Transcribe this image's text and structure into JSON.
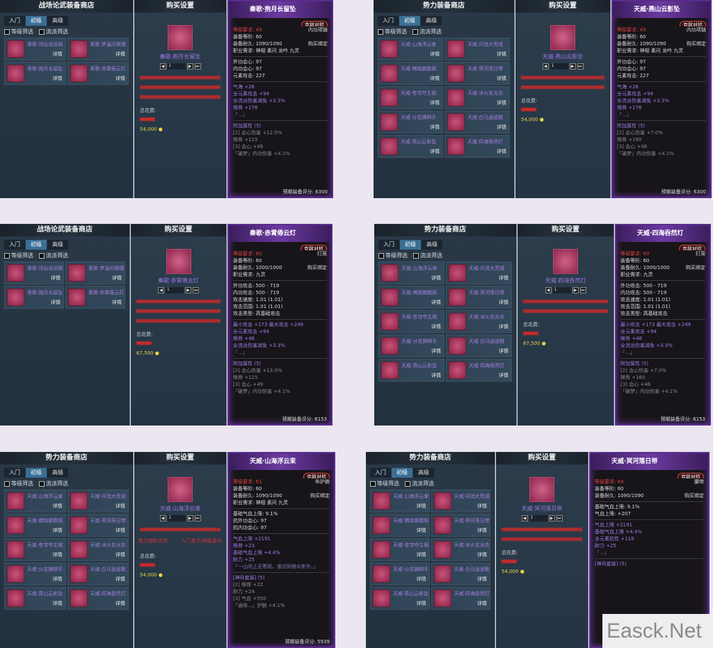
{
  "common": {
    "close": "✕",
    "tab_labels": [
      "入门",
      "初级",
      "高级"
    ],
    "filters": [
      "等级筛选",
      "流派筛选"
    ],
    "detail": "详情",
    "buy_title": "购买设置",
    "qty": "1",
    "total_label": "总花费:",
    "badge": "克敌对抗",
    "bind": "购买绑定",
    "qty_buttons": [
      "◀",
      "▶",
      "⏭"
    ]
  },
  "colors": {
    "accent_purple": "#6b3aa0",
    "tab_active": "#3a6f95",
    "name_purple": "#a77ee0",
    "warning_red": "#c72a2a",
    "coin_gold": "#e8d34a"
  },
  "panels": [
    {
      "shop_title": "战场论武装备商店",
      "items": [
        "秦歌·鸿出龙凤佩",
        "秦歌·梦溪问渠镯",
        "秦歌·抱月长留坠",
        "秦歌·赤霄倦云灯"
      ],
      "buy_name": "秦歌·抱月长留坠",
      "reqs": [],
      "red_bars": 3,
      "coins": "54,000",
      "tip": {
        "title": "秦歌·抱月长留坠",
        "type": "内功项链",
        "lines": [
          [
            "rq",
            "等级要求: 49"
          ],
          [
            "",
            "装备等阶: 60"
          ],
          [
            "",
            "装备耐久: 1090/1090"
          ],
          [
            "",
            "职业需求: 神相 素问 龙吟 九灵"
          ],
          [
            "sec",
            ""
          ],
          [
            "",
            "外功会心: 97"
          ],
          [
            "",
            "内功会心: 97"
          ],
          [
            "",
            "元素攻击: 227"
          ],
          [
            "sec",
            ""
          ],
          [
            "pu",
            "气海 +26"
          ],
          [
            "pu",
            "全元素攻击 +94"
          ],
          [
            "pu",
            "全流派伤害减免 +3.3%"
          ],
          [
            "pu",
            "根骨 +176"
          ],
          [
            "fl",
            "「...」"
          ],
          [
            "sec",
            ""
          ],
          [
            "pu",
            "附加属性 (5)"
          ],
          [
            "gy",
            "[2] 会心伤害 +12.0%"
          ],
          [
            "gy",
            "根骨 +115"
          ],
          [
            "gy",
            "[3] 会心 +49"
          ],
          [
            "gy",
            "「破梦」内功伤害 +4.1%"
          ]
        ],
        "score": "预期装备评分: 6300"
      }
    },
    {
      "shop_title": "势力装备商店",
      "items": [
        "天威·山海浮云束",
        "天威·问流大荒戒",
        "天威·佛晓朝霞佩",
        "天威·冥河落日带",
        "天威·苍穹夺主佩",
        "天威·冰火玄光衣",
        "天威·分花拂柳手",
        "天威·白马逍遥靴",
        "天威·燕山云影坠",
        "天威·四海吞然灯"
      ],
      "buy_name": "天威·燕山云影坠",
      "reqs": [],
      "red_bars": 2,
      "coins": "54,000",
      "tip": {
        "title": "天威·燕山云影坠",
        "type": "内功项链",
        "lines": [
          [
            "rq",
            "等级要求: 49"
          ],
          [
            "",
            "装备等阶: 60"
          ],
          [
            "",
            "装备耐久: 1090/1090"
          ],
          [
            "",
            "职业需求: 神相 素问 龙吟 九灵"
          ],
          [
            "sec",
            ""
          ],
          [
            "",
            "外功会心: 97"
          ],
          [
            "",
            "内功会心: 97"
          ],
          [
            "",
            "元素攻击: 227"
          ],
          [
            "sec",
            ""
          ],
          [
            "pu",
            "气海 +26"
          ],
          [
            "pu",
            "全元素攻击 +94"
          ],
          [
            "pu",
            "全流派伤害减免 +3.3%"
          ],
          [
            "pu",
            "根骨 +176"
          ],
          [
            "fl",
            "「...」"
          ],
          [
            "sec",
            ""
          ],
          [
            "pu",
            "附加属性 (5)"
          ],
          [
            "gy",
            "[2] 会心伤害 +7.0%"
          ],
          [
            "gy",
            "根骨 +160"
          ],
          [
            "gy",
            "[3] 会心 +48"
          ],
          [
            "gy",
            "「破梦」内功伤害 +4.1%"
          ]
        ],
        "score": "预期装备评分: 6300"
      }
    },
    {
      "shop_title": "战场论武装备商店",
      "items": [
        "秦歌·鸿出龙凤佩",
        "秦歌·梦溪问渠镯",
        "秦歌·抱月长留坠",
        "秦歌·赤霄倦云灯"
      ],
      "buy_name": "秦歌·赤霄倦云灯",
      "reqs": [],
      "red_bars": 3,
      "coins": "67,500",
      "tip": {
        "title": "秦歌·赤霄倦云灯",
        "type": "灯笼",
        "lines": [
          [
            "rq",
            "等级要求: 60"
          ],
          [
            "",
            "装备等阶: 60"
          ],
          [
            "",
            "装备耐久: 1000/1000"
          ],
          [
            "",
            "职业需求: 九灵"
          ],
          [
            "sec",
            ""
          ],
          [
            "",
            "外功攻击: 500 - 719"
          ],
          [
            "",
            "内功攻击: 500 - 719"
          ],
          [
            "",
            "攻击速度: 1.01 (1.01)"
          ],
          [
            "",
            "攻击范围: 1.01 (1.01)"
          ],
          [
            "",
            "攻击类型: 高基础攻击"
          ],
          [
            "sec",
            ""
          ],
          [
            "pu",
            "最小攻击 +173  最大攻击 +249"
          ],
          [
            "pu",
            "全元素攻击 +94"
          ],
          [
            "pu",
            "根骨 +48"
          ],
          [
            "pu",
            "全流派伤害减免 +3.3%"
          ],
          [
            "fl",
            "「...」"
          ],
          [
            "sec",
            ""
          ],
          [
            "pu",
            "附加属性 (5)"
          ],
          [
            "gy",
            "[2] 会心伤害 +13.0%"
          ],
          [
            "gy",
            "根骨 +115"
          ],
          [
            "gy",
            "[3] 会心 +49"
          ],
          [
            "gy",
            "「破梦」内功伤害 +4.1%"
          ]
        ],
        "score": "预期装备评分: 6153"
      }
    },
    {
      "shop_title": "势力装备商店",
      "items": [
        "天威·山海浮云束",
        "天威·问流大荒戒",
        "天威·佛晓朝霞佩",
        "天威·冥河落日带",
        "天威·苍穹夺主佩",
        "天威·冰火玄光衣",
        "天威·分花拂柳手",
        "天威·白马逍遥靴",
        "天威·燕山云影坠",
        "天威·四海吞然灯"
      ],
      "buy_name": "天威·四海吞然灯",
      "reqs": [],
      "red_bars": 2,
      "coins": "67,500",
      "tip": {
        "title": "天威·四海吞然灯",
        "type": "灯笼",
        "lines": [
          [
            "rq",
            "等级要求: 60"
          ],
          [
            "",
            "装备等阶: 60"
          ],
          [
            "",
            "装备耐久: 1000/1000"
          ],
          [
            "",
            "职业需求: 九灵"
          ],
          [
            "sec",
            ""
          ],
          [
            "",
            "外功攻击: 500 - 719"
          ],
          [
            "",
            "内功攻击: 500 - 719"
          ],
          [
            "",
            "攻击速度: 1.01 (1.01)"
          ],
          [
            "",
            "攻击范围: 1.01 (1.01)"
          ],
          [
            "",
            "攻击类型: 高基础攻击"
          ],
          [
            "sec",
            ""
          ],
          [
            "pu",
            "最小攻击 +173  最大攻击 +249"
          ],
          [
            "pu",
            "全元素攻击 +94"
          ],
          [
            "pu",
            "根骨 +48"
          ],
          [
            "pu",
            "全流派伤害减免 +3.3%"
          ],
          [
            "fl",
            "「...」"
          ],
          [
            "sec",
            ""
          ],
          [
            "pu",
            "附加属性 (5)"
          ],
          [
            "gy",
            "[2] 会心伤害 +7.0%"
          ],
          [
            "gy",
            "根骨 +160"
          ],
          [
            "gy",
            "[3] 会心 +48"
          ],
          [
            "gy",
            "「破梦」内功伤害 +4.1%"
          ]
        ],
        "score": "预期装备评分: 6153"
      }
    },
    {
      "shop_title": "势力装备商店",
      "items": [
        "天威·山海浮云束",
        "天威·问流大荒戒",
        "天威·佛晓朝霞佩",
        "天威·冥河落日带",
        "天威·苍穹夺主佩",
        "天威·冰火玄光衣",
        "天威·分花拂柳手",
        "天威·白马逍遥靴",
        "天威·燕山云影坠",
        "天威·四海吞然灯"
      ],
      "buy_name": "天威·山海浮云束",
      "reqs": [
        "势力官阶达到",
        "入门弟子/初级釜众"
      ],
      "red_bars": 1,
      "coins": "54,000",
      "tip": {
        "title": "天威·山海浮云束",
        "type": "布护腕",
        "lines": [
          [
            "rq",
            "等级要求: 61"
          ],
          [
            "",
            "装备等阶: 60"
          ],
          [
            "",
            "装备耐久: 1090/1090"
          ],
          [
            "",
            "职业需求: 神相 素问 九灵"
          ],
          [
            "sec",
            ""
          ],
          [
            "",
            "基础气血上限: 9.1%"
          ],
          [
            "",
            "抗外功会心: 97"
          ],
          [
            "",
            "抗内功会心: 97"
          ],
          [
            "sec",
            ""
          ],
          [
            "pu",
            "气血上限 +2191"
          ],
          [
            "pu",
            "根骨 +23"
          ],
          [
            "pu",
            "基础气血上限 +4.4%"
          ],
          [
            "pu",
            "耐力 +25"
          ],
          [
            "fl",
            "「一山闲上无寒雨，谁识同根众影外。」"
          ],
          [
            "sec",
            ""
          ],
          [
            "pu",
            "[神兵套装] (5)"
          ],
          [
            "gy",
            "[2] 根骨 +22"
          ],
          [
            "gy",
            "耐力 +24"
          ],
          [
            "gy",
            "[3] 气血 +550"
          ],
          [
            "gy",
            "「通体...」护腕 +4.1%"
          ]
        ],
        "score": "预期装备评分: 5939"
      }
    },
    {
      "shop_title": "势力装备商店",
      "items": [
        "天威·山海浮云束",
        "天威·问流大荒戒",
        "天威·佛晓朝霞佩",
        "天威·冥河落日带",
        "天威·苍穹夺主佩",
        "天威·冰火玄光衣",
        "天威·分花拂柳手",
        "天威·白马逍遥靴",
        "天威·燕山云影坠",
        "天威·四海吞然灯"
      ],
      "buy_name": "天威·冥河落日带",
      "reqs": [],
      "red_bars": 2,
      "coins": "54,000",
      "tip": {
        "title": "天威·冥河落日带",
        "type": "腰带",
        "lines": [
          [
            "rq",
            "等级要求: 64"
          ],
          [
            "",
            "装备等阶: 60"
          ],
          [
            "",
            "装备耐久: 1090/1090"
          ],
          [
            "sec",
            ""
          ],
          [
            "",
            "基础气血上限: 9.1%"
          ],
          [
            "",
            "气血上限: +207"
          ],
          [
            "sec",
            ""
          ],
          [
            "pu",
            "气血上限 +2191"
          ],
          [
            "pu",
            "基础气血上限 +4.4%"
          ],
          [
            "pu",
            "全元素抗性 +118"
          ],
          [
            "pu",
            "耐力 +25"
          ],
          [
            "fl",
            "「...」"
          ],
          [
            "sec",
            ""
          ],
          [
            "pu",
            "[神兵套装] (5)"
          ]
        ],
        "score": ""
      }
    }
  ],
  "watermark": "Easck.Net"
}
